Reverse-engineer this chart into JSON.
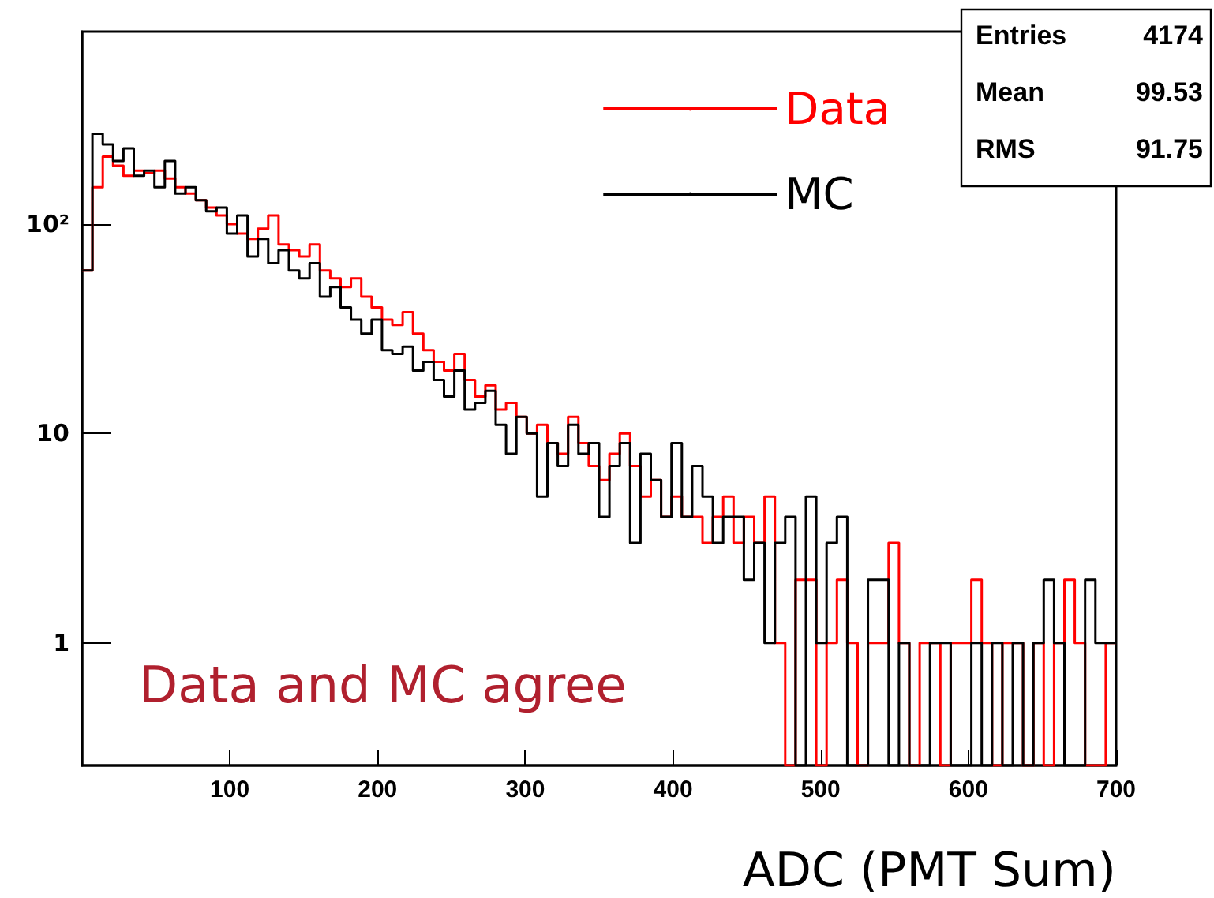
{
  "chart_data": {
    "type": "histogram",
    "xlabel": "ADC (PMT Sum)",
    "annotations": [
      "Data and MC agree",
      "Entries",
      "4174",
      "Mean",
      "99.53",
      "RMS",
      "91.75"
    ],
    "bins": [
      0,
      7,
      14,
      21,
      28,
      35,
      42,
      49,
      56,
      63,
      70,
      77,
      84,
      91,
      98,
      105,
      112,
      119,
      126,
      133,
      140,
      147,
      154,
      161,
      168,
      175,
      182,
      189,
      196,
      203,
      210,
      217,
      224,
      231,
      238,
      245,
      252,
      259,
      266,
      273,
      280,
      287,
      294,
      301,
      308,
      315,
      322,
      329,
      336,
      343,
      350,
      357,
      364,
      371,
      378,
      385,
      392,
      399,
      406,
      413,
      420,
      427,
      434,
      441,
      448,
      455,
      462,
      469,
      476,
      483,
      490,
      497,
      504,
      511,
      518,
      525,
      532,
      539,
      546,
      553,
      560,
      567,
      574,
      581,
      588,
      595,
      602,
      609,
      616,
      623,
      630,
      637,
      644,
      651,
      658,
      665,
      672,
      679,
      686,
      693,
      700
    ],
    "series": [
      {
        "name": "Data",
        "color": "#ff0000",
        "values": [
          60,
          150,
          210,
          190,
          170,
          180,
          175,
          180,
          165,
          150,
          140,
          130,
          120,
          110,
          100,
          90,
          85,
          95,
          110,
          80,
          75,
          70,
          80,
          60,
          55,
          50,
          55,
          45,
          40,
          35,
          33,
          38,
          30,
          25,
          22,
          20,
          24,
          18,
          15,
          17,
          13,
          14,
          12,
          10,
          11,
          9,
          8,
          12,
          9,
          7,
          6,
          8,
          10,
          7,
          5,
          6,
          4,
          5,
          4,
          4,
          3,
          4,
          5,
          3,
          4,
          3,
          5,
          1,
          null,
          2,
          2,
          null,
          1,
          2,
          1,
          null,
          1,
          1,
          3,
          1,
          null,
          1,
          1,
          null,
          1,
          1,
          2,
          1,
          null,
          1,
          1,
          null,
          1,
          null,
          1,
          2,
          1,
          null,
          null,
          1
        ]
      },
      {
        "name": "MC",
        "color": "#000000",
        "values": [
          60,
          270,
          240,
          200,
          230,
          170,
          180,
          150,
          200,
          140,
          150,
          130,
          115,
          120,
          90,
          110,
          70,
          85,
          65,
          75,
          60,
          55,
          65,
          45,
          50,
          40,
          35,
          30,
          35,
          25,
          24,
          26,
          20,
          22,
          18,
          15,
          20,
          13,
          14,
          16,
          11,
          8,
          12,
          10,
          5,
          9,
          7,
          11,
          8,
          9,
          4,
          7,
          9,
          3,
          8,
          6,
          4,
          9,
          4,
          7,
          5,
          3,
          4,
          4,
          2,
          3,
          1,
          3,
          4,
          null,
          5,
          1,
          3,
          4,
          null,
          null,
          2,
          2,
          null,
          1,
          null,
          null,
          1,
          1,
          null,
          null,
          1,
          null,
          1,
          null,
          1,
          null,
          1,
          2,
          1,
          null,
          null,
          2,
          1,
          1
        ]
      }
    ],
    "log": "y",
    "xlim": [
      0,
      700
    ],
    "xticks": [
      100,
      200,
      300,
      400,
      500,
      600,
      700
    ],
    "ylim": [
      0.26,
      830
    ],
    "yticks": [
      1,
      10,
      {
        "value": 100,
        "label": "10²"
      }
    ],
    "grid": false,
    "legend": "top right"
  }
}
